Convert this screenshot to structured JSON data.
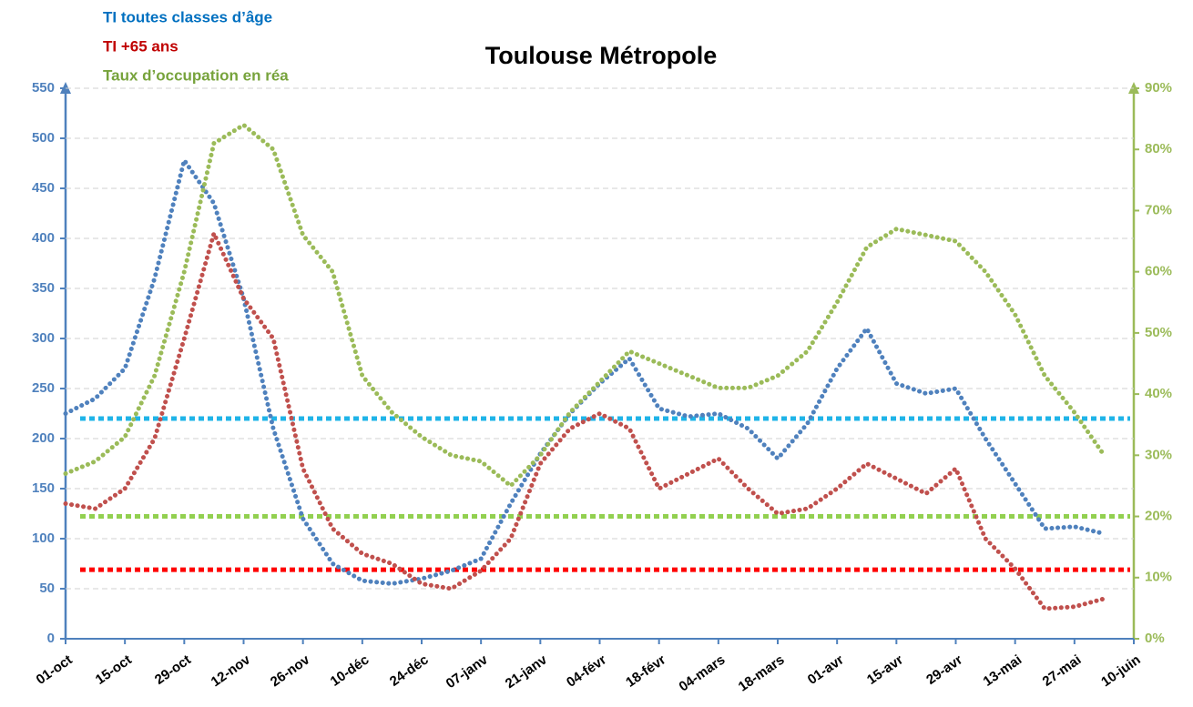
{
  "chart_data": {
    "type": "line",
    "title": "Toulouse Métropole",
    "categories": [
      "01-oct",
      null,
      "15-oct",
      null,
      "29-oct",
      null,
      "12-nov",
      null,
      "26-nov",
      null,
      "10-déc",
      null,
      "24-déc",
      null,
      "07-janv",
      null,
      "21-janv",
      null,
      "04-févr",
      null,
      "18-févr",
      null,
      "04-mars",
      null,
      "18-mars",
      null,
      "01-avr",
      null,
      "15-avr",
      null,
      "29-avr",
      null,
      "13-mai",
      null,
      "27-mai",
      null,
      "10-juin"
    ],
    "series": [
      {
        "name": "TI toutes classes d’âge",
        "color": "#4f81bd",
        "legend_color": "#0070c0",
        "values": [
          225,
          240,
          270,
          360,
          478,
          435,
          340,
          210,
          120,
          75,
          58,
          55,
          60,
          68,
          80,
          135,
          185,
          225,
          255,
          280,
          230,
          222,
          225,
          210,
          180,
          215,
          270,
          310,
          255,
          245,
          250,
          200,
          155,
          110,
          112,
          105,
          null
        ]
      },
      {
        "name": "TI +65 ans",
        "color": "#c0504d",
        "legend_color": "#c00000",
        "values": [
          135,
          130,
          150,
          200,
          300,
          405,
          340,
          300,
          170,
          110,
          85,
          75,
          55,
          50,
          68,
          100,
          175,
          210,
          225,
          210,
          150,
          165,
          180,
          150,
          125,
          130,
          150,
          175,
          160,
          145,
          170,
          100,
          70,
          30,
          32,
          40,
          null
        ]
      },
      {
        "name": "Taux d’occupation en réa",
        "color": "#9bbb59",
        "legend_color": "#77a33c",
        "axis": "y2",
        "values": [
          27,
          29,
          33,
          43,
          60,
          81,
          84,
          80,
          66,
          60,
          43,
          37,
          33,
          30,
          29,
          25,
          30,
          37,
          42,
          47,
          45,
          43,
          41,
          41,
          43,
          47,
          55,
          64,
          67,
          66,
          65,
          60,
          53,
          43,
          37,
          30,
          null
        ]
      }
    ],
    "reference_lines": [
      {
        "value": 220,
        "color": "#1fb4e8"
      },
      {
        "value": 20,
        "color": "#92d050",
        "axis": "y2"
      },
      {
        "value": 69,
        "color": "#ff0000"
      }
    ],
    "ylim": [
      0,
      550
    ],
    "yticks": [
      0,
      50,
      100,
      150,
      200,
      250,
      300,
      350,
      400,
      450,
      500,
      550
    ],
    "y2lim": [
      0,
      90
    ],
    "y2ticks": [
      {
        "value": 0,
        "label": "0%"
      },
      {
        "value": 10,
        "label": "10%"
      },
      {
        "value": 20,
        "label": "20%"
      },
      {
        "value": 30,
        "label": "30%"
      },
      {
        "value": 40,
        "label": "40%"
      },
      {
        "value": 50,
        "label": "50%"
      },
      {
        "value": 60,
        "label": "60%"
      },
      {
        "value": 70,
        "label": "70%"
      },
      {
        "value": 80,
        "label": "80%"
      },
      {
        "value": 90,
        "label": "90%"
      }
    ],
    "grid": true
  }
}
